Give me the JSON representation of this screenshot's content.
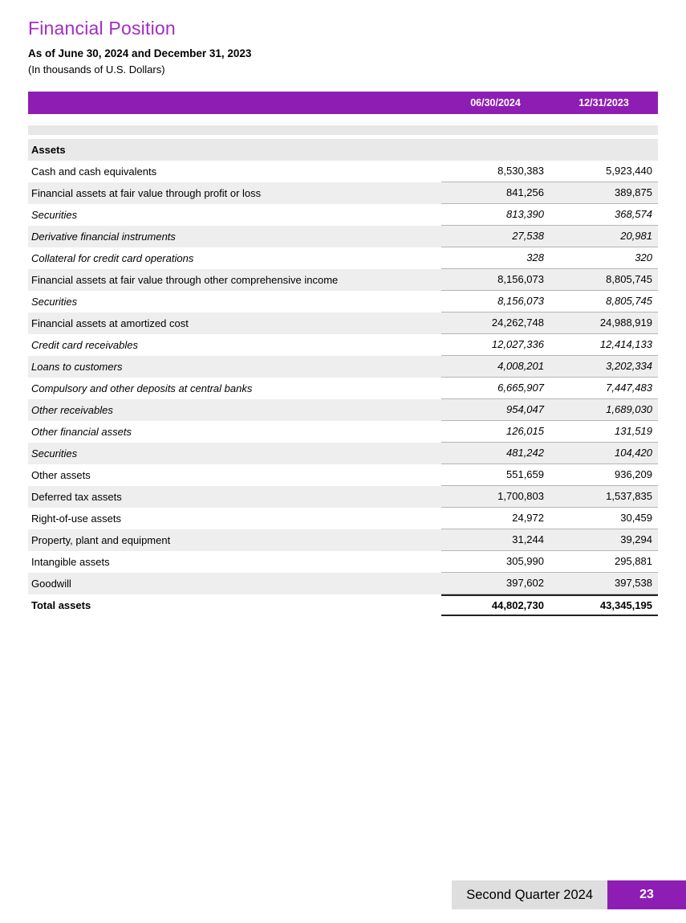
{
  "page": {
    "title": "Financial Position",
    "subtitle": "As of June 30, 2024 and December 31, 2023",
    "unit_note": "(In thousands of U.S. Dollars)"
  },
  "colors": {
    "accent_purple": "#8e1db4",
    "title_purple": "#a32cc4",
    "header_text": "#ffffff",
    "row_stripe": "#eeeeee",
    "divider_bar": "#e7e7e7",
    "footer_gray": "#dedede"
  },
  "table": {
    "columns": [
      "06/30/2024",
      "12/31/2023"
    ],
    "section_header": "Assets",
    "rows": [
      {
        "label": "Cash and cash equivalents",
        "italic": false,
        "total": false,
        "values": [
          "8,530,383",
          "5,923,440"
        ]
      },
      {
        "label": "Financial assets at fair value through profit or loss",
        "italic": false,
        "total": false,
        "values": [
          "841,256",
          "389,875"
        ]
      },
      {
        "label": "Securities",
        "italic": true,
        "total": false,
        "values": [
          "813,390",
          "368,574"
        ]
      },
      {
        "label": "Derivative financial instruments",
        "italic": true,
        "total": false,
        "values": [
          "27,538",
          "20,981"
        ]
      },
      {
        "label": "Collateral for credit card operations",
        "italic": true,
        "total": false,
        "values": [
          "328",
          "320"
        ]
      },
      {
        "label": "Financial assets at fair value through other comprehensive income",
        "italic": false,
        "total": false,
        "values": [
          "8,156,073",
          "8,805,745"
        ]
      },
      {
        "label": "Securities",
        "italic": true,
        "total": false,
        "values": [
          "8,156,073",
          "8,805,745"
        ]
      },
      {
        "label": "Financial assets at amortized cost",
        "italic": false,
        "total": false,
        "values": [
          "24,262,748",
          "24,988,919"
        ]
      },
      {
        "label": "Credit card receivables",
        "italic": true,
        "total": false,
        "values": [
          "12,027,336",
          "12,414,133"
        ]
      },
      {
        "label": "Loans to customers",
        "italic": true,
        "total": false,
        "values": [
          "4,008,201",
          "3,202,334"
        ]
      },
      {
        "label": "Compulsory and other deposits at central banks",
        "italic": true,
        "total": false,
        "values": [
          "6,665,907",
          "7,447,483"
        ]
      },
      {
        "label": "Other receivables",
        "italic": true,
        "total": false,
        "values": [
          "954,047",
          "1,689,030"
        ]
      },
      {
        "label": "Other financial assets",
        "italic": true,
        "total": false,
        "values": [
          "126,015",
          "131,519"
        ]
      },
      {
        "label": "Securities",
        "italic": true,
        "total": false,
        "values": [
          "481,242",
          "104,420"
        ]
      },
      {
        "label": "Other assets",
        "italic": false,
        "total": false,
        "values": [
          "551,659",
          "936,209"
        ]
      },
      {
        "label": "Deferred tax assets",
        "italic": false,
        "total": false,
        "values": [
          "1,700,803",
          "1,537,835"
        ]
      },
      {
        "label": "Right-of-use assets",
        "italic": false,
        "total": false,
        "values": [
          "24,972",
          "30,459"
        ]
      },
      {
        "label": "Property, plant and equipment",
        "italic": false,
        "total": false,
        "values": [
          "31,244",
          "39,294"
        ]
      },
      {
        "label": "Intangible assets",
        "italic": false,
        "total": false,
        "values": [
          "305,990",
          "295,881"
        ]
      },
      {
        "label": "Goodwill",
        "italic": false,
        "total": false,
        "values": [
          "397,602",
          "397,538"
        ]
      },
      {
        "label": "Total assets",
        "italic": false,
        "total": true,
        "values": [
          "44,802,730",
          "43,345,195"
        ]
      }
    ]
  },
  "footer": {
    "label": "Second Quarter 2024",
    "page_number": "23"
  }
}
